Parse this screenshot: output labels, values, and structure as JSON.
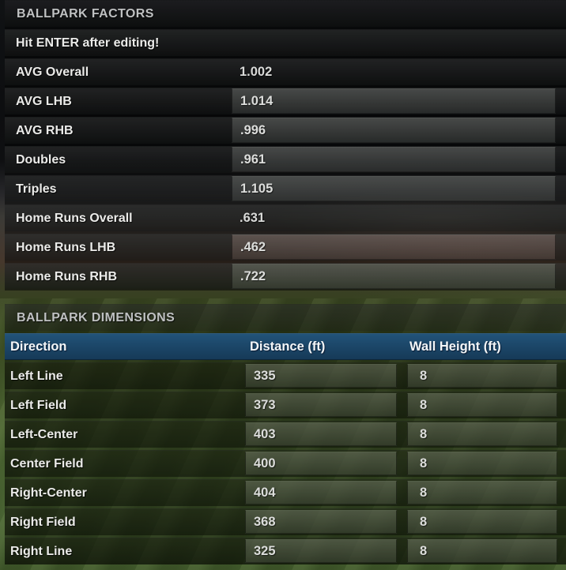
{
  "factors": {
    "title": "BALLPARK FACTORS",
    "notice": "Hit ENTER after editing!",
    "rows": [
      {
        "label": "AVG Overall",
        "value": "1.002",
        "editable": false
      },
      {
        "label": "AVG LHB",
        "value": "1.014",
        "editable": true
      },
      {
        "label": "AVG RHB",
        "value": ".996",
        "editable": true
      },
      {
        "label": "Doubles",
        "value": ".961",
        "editable": true
      },
      {
        "label": "Triples",
        "value": "1.105",
        "editable": true
      },
      {
        "label": "Home Runs Overall",
        "value": ".631",
        "editable": false
      },
      {
        "label": "Home Runs LHB",
        "value": ".462",
        "editable": true
      },
      {
        "label": "Home Runs RHB",
        "value": ".722",
        "editable": true
      }
    ]
  },
  "dimensions": {
    "title": "BALLPARK DIMENSIONS",
    "columns": {
      "direction": "Direction",
      "distance": "Distance (ft)",
      "wall_height": "Wall Height (ft)"
    },
    "rows": [
      {
        "direction": "Left Line",
        "distance": "335",
        "wall_height": "8"
      },
      {
        "direction": "Left Field",
        "distance": "373",
        "wall_height": "8"
      },
      {
        "direction": "Left-Center",
        "distance": "403",
        "wall_height": "8"
      },
      {
        "direction": "Center Field",
        "distance": "400",
        "wall_height": "8"
      },
      {
        "direction": "Right-Center",
        "distance": "404",
        "wall_height": "8"
      },
      {
        "direction": "Right Field",
        "distance": "368",
        "wall_height": "8"
      },
      {
        "direction": "Right Line",
        "distance": "325",
        "wall_height": "8"
      }
    ]
  },
  "colors": {
    "table_header_blue": "#1c4769",
    "field_green": "#4a6230"
  }
}
